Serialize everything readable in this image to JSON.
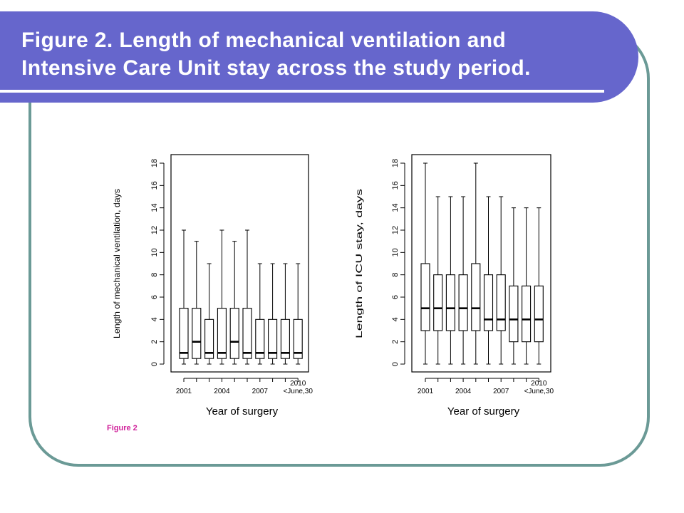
{
  "slide": {
    "title_line1": "Figure 2. Length of mechanical ventilation and",
    "title_line2": "Intensive Care Unit stay across the study period.",
    "caption": "Figure 2"
  },
  "colors": {
    "banner": "#6666cc",
    "frame": "#6b9a96",
    "caption": "#d0209a",
    "plot": "#000000"
  },
  "chart_data": [
    {
      "type": "box",
      "title": "",
      "xlabel": "Year of surgery",
      "ylabel": "Length of mechanical ventilation, days",
      "ylim": [
        0,
        18
      ],
      "yticks": [
        0,
        2,
        4,
        6,
        8,
        10,
        12,
        14,
        16,
        18
      ],
      "xtick_labels": [
        {
          "lines": [
            "2001"
          ],
          "index": 1
        },
        {
          "lines": [
            "2004"
          ],
          "index": 4
        },
        {
          "lines": [
            "2007"
          ],
          "index": 7
        },
        {
          "lines": [
            "2010",
            "<June,30"
          ],
          "index": 10
        }
      ],
      "boxes": [
        {
          "min": 0,
          "q1": 0.5,
          "median": 1,
          "q3": 5,
          "max": 12
        },
        {
          "min": 0,
          "q1": 0.5,
          "median": 2,
          "q3": 5,
          "max": 11
        },
        {
          "min": 0,
          "q1": 0.5,
          "median": 1,
          "q3": 4,
          "max": 9
        },
        {
          "min": 0,
          "q1": 0.5,
          "median": 1,
          "q3": 5,
          "max": 12
        },
        {
          "min": 0,
          "q1": 0.5,
          "median": 2,
          "q3": 5,
          "max": 11
        },
        {
          "min": 0,
          "q1": 0.5,
          "median": 1,
          "q3": 5,
          "max": 12
        },
        {
          "min": 0,
          "q1": 0.5,
          "median": 1,
          "q3": 4,
          "max": 9
        },
        {
          "min": 0,
          "q1": 0.5,
          "median": 1,
          "q3": 4,
          "max": 9
        },
        {
          "min": 0,
          "q1": 0.5,
          "median": 1,
          "q3": 4,
          "max": 9
        },
        {
          "min": 0,
          "q1": 0.5,
          "median": 1,
          "q3": 4,
          "max": 9
        }
      ]
    },
    {
      "type": "box",
      "title": "",
      "xlabel": "Year of surgery",
      "ylabel": "Length of ICU stay, days",
      "ylim": [
        0,
        18
      ],
      "yticks": [
        0,
        2,
        4,
        6,
        8,
        10,
        12,
        14,
        16,
        18
      ],
      "xtick_labels": [
        {
          "lines": [
            "2001"
          ],
          "index": 1
        },
        {
          "lines": [
            "2004"
          ],
          "index": 4
        },
        {
          "lines": [
            "2007"
          ],
          "index": 7
        },
        {
          "lines": [
            "2010",
            "<June,30"
          ],
          "index": 10
        }
      ],
      "boxes": [
        {
          "min": 0,
          "q1": 3,
          "median": 5,
          "q3": 9,
          "max": 18
        },
        {
          "min": 0,
          "q1": 3,
          "median": 5,
          "q3": 8,
          "max": 15
        },
        {
          "min": 0,
          "q1": 3,
          "median": 5,
          "q3": 8,
          "max": 15
        },
        {
          "min": 0,
          "q1": 3,
          "median": 5,
          "q3": 8,
          "max": 15
        },
        {
          "min": 0,
          "q1": 3,
          "median": 5,
          "q3": 9,
          "max": 18
        },
        {
          "min": 0,
          "q1": 3,
          "median": 4,
          "q3": 8,
          "max": 15
        },
        {
          "min": 0,
          "q1": 3,
          "median": 4,
          "q3": 8,
          "max": 15
        },
        {
          "min": 0,
          "q1": 2,
          "median": 4,
          "q3": 7,
          "max": 14
        },
        {
          "min": 0,
          "q1": 2,
          "median": 4,
          "q3": 7,
          "max": 14
        },
        {
          "min": 0,
          "q1": 2,
          "median": 4,
          "q3": 7,
          "max": 14
        }
      ]
    }
  ]
}
